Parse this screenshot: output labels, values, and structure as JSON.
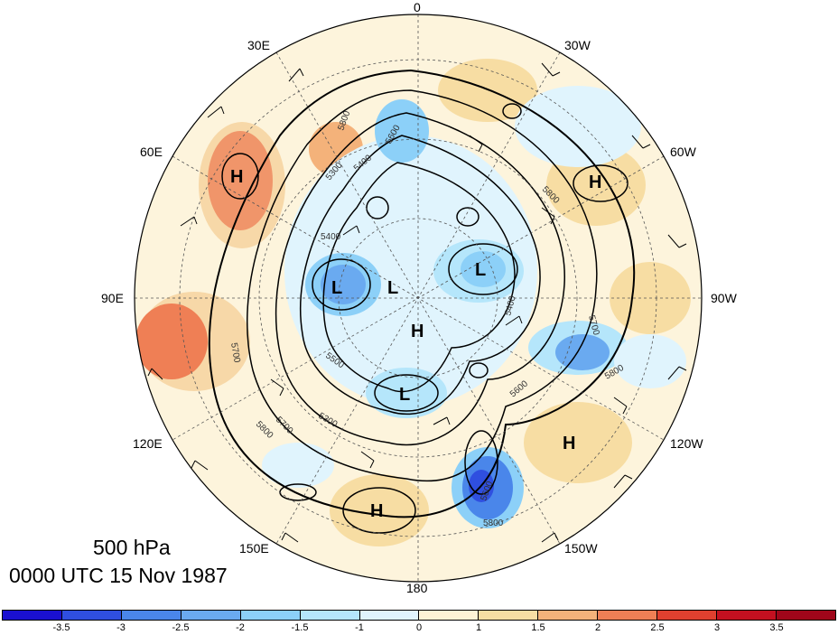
{
  "map": {
    "level": "500 hPa",
    "valid_time": "0000 UTC 15 Nov 1987",
    "longitude_labels": {
      "deg0": "0",
      "deg30w": "30W",
      "deg60w": "60W",
      "deg90w": "90W",
      "deg120w": "120W",
      "deg150w": "150W",
      "deg180": "180",
      "deg150e": "150E",
      "deg120e": "120E",
      "deg90e": "90E",
      "deg60e": "60E",
      "deg30e": "30E"
    },
    "pressure_centers": [
      "H",
      "H",
      "L",
      "L",
      "L",
      "H",
      "L",
      "H",
      "H"
    ],
    "contour_labels": [
      "5800",
      "5800",
      "5600",
      "5400",
      "5400",
      "5700",
      "5700",
      "5800",
      "5600",
      "5500",
      "5300",
      "5300",
      "5600",
      "5800",
      "5800",
      "5700",
      "5400"
    ]
  },
  "colorbar": {
    "ticks": [
      "-3.5",
      "-3",
      "-2.5",
      "-2",
      "-1.5",
      "-1",
      "0",
      "1",
      "1.5",
      "2",
      "2.5",
      "3",
      "3.5"
    ],
    "colors": [
      "#1a10d0",
      "#2f4fe0",
      "#4a86ea",
      "#6aaaf0",
      "#8cd0f8",
      "#b5e6fb",
      "#e0f4fd",
      "#fdf3d6",
      "#f7dda3",
      "#f4b27a",
      "#ef7f55",
      "#e0402f",
      "#c41020",
      "#a0061a"
    ]
  }
}
